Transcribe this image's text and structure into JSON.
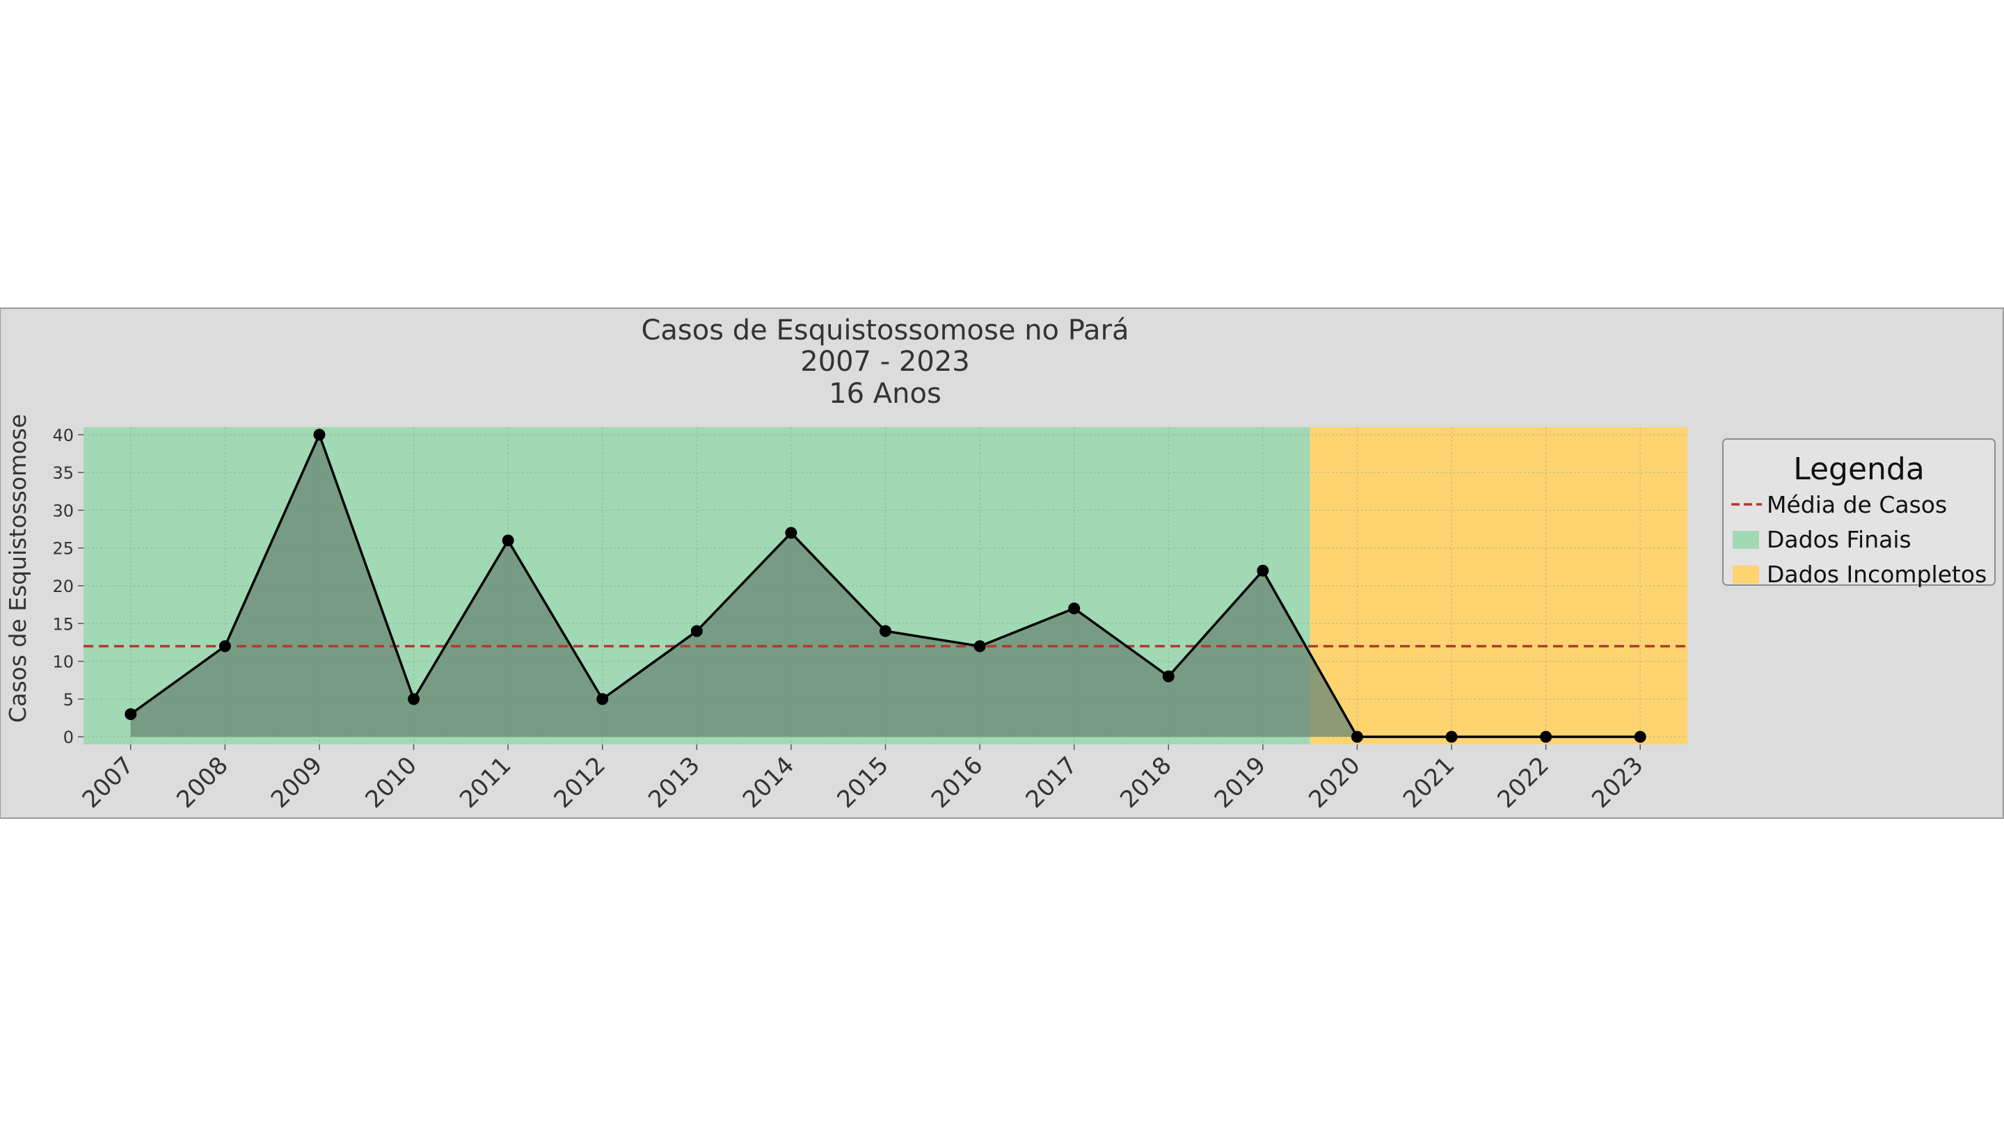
{
  "chart_data": {
    "type": "line",
    "title_lines": [
      "Casos de Esquistossomose no Pará",
      "2007 - 2023",
      "16 Anos"
    ],
    "xlabel": "",
    "ylabel": "Casos de Esquistossomose",
    "categories": [
      "2007",
      "2008",
      "2009",
      "2010",
      "2011",
      "2012",
      "2013",
      "2014",
      "2015",
      "2016",
      "2017",
      "2018",
      "2019",
      "2020",
      "2021",
      "2022",
      "2023"
    ],
    "values": [
      3,
      12,
      40,
      5,
      26,
      5,
      14,
      27,
      14,
      12,
      17,
      8,
      22,
      0,
      0,
      0,
      0
    ],
    "mean": 12,
    "ylim": [
      -1,
      41
    ],
    "yticks": [
      0,
      5,
      10,
      15,
      20,
      25,
      30,
      35,
      40
    ],
    "grid": true,
    "regions": [
      {
        "name": "Dados Finais",
        "from_year": 2006.5,
        "to_year": 2019.5,
        "color": "#a1d9b4"
      },
      {
        "name": "Dados Incompletos",
        "from_year": 2019.5,
        "to_year": 2023.5,
        "color": "#fed471"
      }
    ],
    "colors": {
      "line": "#000000",
      "fill": "#6b8a74",
      "mean": "#b03a2e",
      "panel": "#dcdcdc"
    },
    "legend": {
      "title": "Legenda",
      "position": "right",
      "items": [
        {
          "label": "Média de Casos",
          "kind": "dashed-line",
          "color": "#b03a2e"
        },
        {
          "label": "Dados Finais",
          "kind": "patch",
          "color": "#a1d9b4"
        },
        {
          "label": "Dados Incompletos",
          "kind": "patch",
          "color": "#fed471"
        }
      ]
    }
  }
}
